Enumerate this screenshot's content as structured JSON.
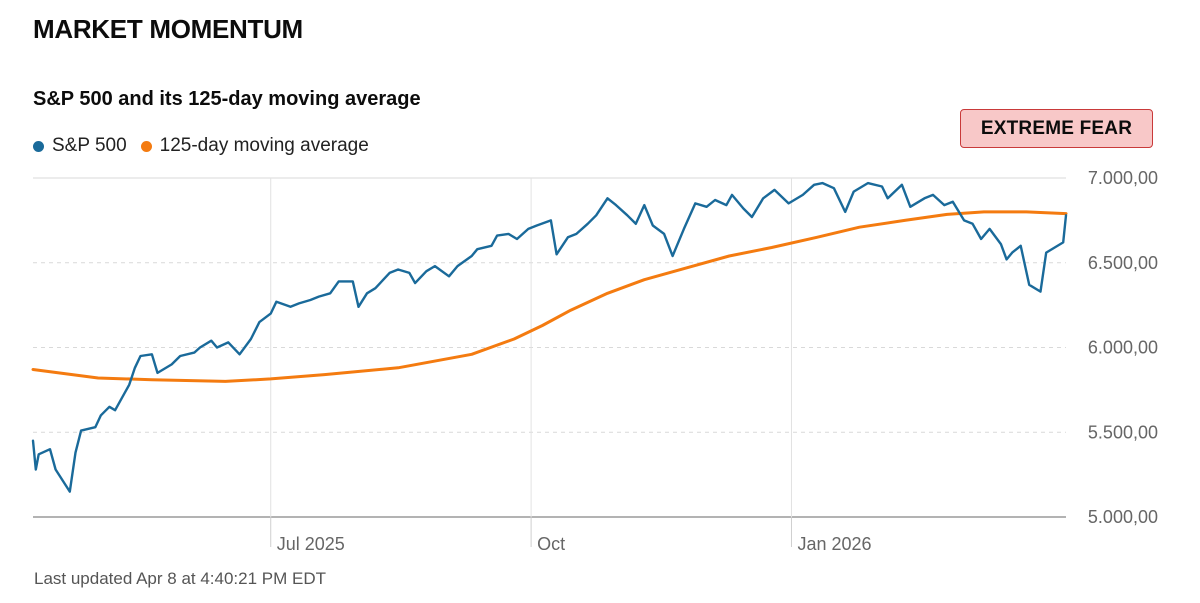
{
  "header": {
    "title": "MARKET MOMENTUM"
  },
  "badge": {
    "label": "EXTREME FEAR",
    "bg": "#f8c8c8",
    "border": "#c93a3a"
  },
  "footer": {
    "updated": "Last updated Apr 8 at 4:40:21 PM EDT"
  },
  "chart_data": {
    "type": "line",
    "title": "S&P 500 and its 125-day moving average",
    "xlabel": "",
    "ylabel": "",
    "ylim": [
      5000,
      7000
    ],
    "xlim": [
      "2025-04-08",
      "2026-04-08"
    ],
    "y_ticks": [
      {
        "value": 7000,
        "label": "7.000,00"
      },
      {
        "value": 6500,
        "label": "6.500,00"
      },
      {
        "value": 6000,
        "label": "6.000,00"
      },
      {
        "value": 5500,
        "label": "5.500,00"
      },
      {
        "value": 5000,
        "label": "5.000,00"
      }
    ],
    "x_ticks": [
      {
        "date": "2025-07-01",
        "label": "Jul 2025"
      },
      {
        "date": "2025-10-01",
        "label": "Oct"
      },
      {
        "date": "2026-01-01",
        "label": "Jan 2026"
      }
    ],
    "grid": true,
    "legend": "top-left",
    "series": [
      {
        "name": "S&P 500",
        "color": "#1a6a9a",
        "points": [
          [
            "2025-04-08",
            5450
          ],
          [
            "2025-04-09",
            5280
          ],
          [
            "2025-04-10",
            5370
          ],
          [
            "2025-04-14",
            5400
          ],
          [
            "2025-04-16",
            5280
          ],
          [
            "2025-04-21",
            5150
          ],
          [
            "2025-04-23",
            5380
          ],
          [
            "2025-04-25",
            5510
          ],
          [
            "2025-04-30",
            5530
          ],
          [
            "2025-05-02",
            5600
          ],
          [
            "2025-05-05",
            5650
          ],
          [
            "2025-05-07",
            5630
          ],
          [
            "2025-05-12",
            5780
          ],
          [
            "2025-05-14",
            5880
          ],
          [
            "2025-05-16",
            5950
          ],
          [
            "2025-05-20",
            5960
          ],
          [
            "2025-05-22",
            5850
          ],
          [
            "2025-05-27",
            5900
          ],
          [
            "2025-05-30",
            5950
          ],
          [
            "2025-06-04",
            5970
          ],
          [
            "2025-06-06",
            6000
          ],
          [
            "2025-06-10",
            6040
          ],
          [
            "2025-06-12",
            6000
          ],
          [
            "2025-06-16",
            6030
          ],
          [
            "2025-06-20",
            5960
          ],
          [
            "2025-06-24",
            6050
          ],
          [
            "2025-06-27",
            6150
          ],
          [
            "2025-07-01",
            6200
          ],
          [
            "2025-07-03",
            6270
          ],
          [
            "2025-07-08",
            6240
          ],
          [
            "2025-07-11",
            6260
          ],
          [
            "2025-07-15",
            6280
          ],
          [
            "2025-07-18",
            6300
          ],
          [
            "2025-07-22",
            6320
          ],
          [
            "2025-07-25",
            6390
          ],
          [
            "2025-07-30",
            6390
          ],
          [
            "2025-08-01",
            6240
          ],
          [
            "2025-08-04",
            6320
          ],
          [
            "2025-08-07",
            6350
          ],
          [
            "2025-08-12",
            6440
          ],
          [
            "2025-08-15",
            6460
          ],
          [
            "2025-08-19",
            6440
          ],
          [
            "2025-08-21",
            6380
          ],
          [
            "2025-08-25",
            6450
          ],
          [
            "2025-08-28",
            6480
          ],
          [
            "2025-09-02",
            6420
          ],
          [
            "2025-09-05",
            6480
          ],
          [
            "2025-09-10",
            6540
          ],
          [
            "2025-09-12",
            6580
          ],
          [
            "2025-09-17",
            6600
          ],
          [
            "2025-09-19",
            6660
          ],
          [
            "2025-09-23",
            6670
          ],
          [
            "2025-09-26",
            6640
          ],
          [
            "2025-09-30",
            6700
          ],
          [
            "2025-10-03",
            6720
          ],
          [
            "2025-10-08",
            6750
          ],
          [
            "2025-10-10",
            6550
          ],
          [
            "2025-10-14",
            6650
          ],
          [
            "2025-10-17",
            6670
          ],
          [
            "2025-10-21",
            6730
          ],
          [
            "2025-10-24",
            6780
          ],
          [
            "2025-10-28",
            6880
          ],
          [
            "2025-10-31",
            6840
          ],
          [
            "2025-11-04",
            6780
          ],
          [
            "2025-11-07",
            6730
          ],
          [
            "2025-11-10",
            6840
          ],
          [
            "2025-11-13",
            6720
          ],
          [
            "2025-11-17",
            6670
          ],
          [
            "2025-11-20",
            6540
          ],
          [
            "2025-11-24",
            6700
          ],
          [
            "2025-11-28",
            6850
          ],
          [
            "2025-12-02",
            6830
          ],
          [
            "2025-12-05",
            6870
          ],
          [
            "2025-12-09",
            6840
          ],
          [
            "2025-12-11",
            6900
          ],
          [
            "2025-12-15",
            6820
          ],
          [
            "2025-12-18",
            6770
          ],
          [
            "2025-12-22",
            6880
          ],
          [
            "2025-12-26",
            6930
          ],
          [
            "2025-12-31",
            6850
          ],
          [
            "2026-01-05",
            6900
          ],
          [
            "2026-01-09",
            6960
          ],
          [
            "2026-01-12",
            6970
          ],
          [
            "2026-01-16",
            6940
          ],
          [
            "2026-01-20",
            6800
          ],
          [
            "2026-01-23",
            6920
          ],
          [
            "2026-01-28",
            6970
          ],
          [
            "2026-02-02",
            6950
          ],
          [
            "2026-02-04",
            6880
          ],
          [
            "2026-02-09",
            6960
          ],
          [
            "2026-02-12",
            6830
          ],
          [
            "2026-02-17",
            6880
          ],
          [
            "2026-02-20",
            6900
          ],
          [
            "2026-02-24",
            6840
          ],
          [
            "2026-02-27",
            6860
          ],
          [
            "2026-03-03",
            6750
          ],
          [
            "2026-03-06",
            6730
          ],
          [
            "2026-03-09",
            6640
          ],
          [
            "2026-03-12",
            6700
          ],
          [
            "2026-03-16",
            6610
          ],
          [
            "2026-03-18",
            6520
          ],
          [
            "2026-03-20",
            6560
          ],
          [
            "2026-03-23",
            6600
          ],
          [
            "2026-03-26",
            6370
          ],
          [
            "2026-03-30",
            6330
          ],
          [
            "2026-04-01",
            6560
          ],
          [
            "2026-04-06",
            6610
          ],
          [
            "2026-04-07",
            6620
          ],
          [
            "2026-04-08",
            6780
          ]
        ]
      },
      {
        "name": "125-day moving average",
        "color": "#f47b10",
        "points": [
          [
            "2025-04-08",
            5870
          ],
          [
            "2025-05-01",
            5820
          ],
          [
            "2025-05-20",
            5810
          ],
          [
            "2025-06-15",
            5800
          ],
          [
            "2025-07-01",
            5815
          ],
          [
            "2025-07-20",
            5840
          ],
          [
            "2025-08-15",
            5880
          ],
          [
            "2025-09-10",
            5960
          ],
          [
            "2025-09-25",
            6050
          ],
          [
            "2025-10-05",
            6130
          ],
          [
            "2025-10-15",
            6220
          ],
          [
            "2025-10-28",
            6320
          ],
          [
            "2025-11-10",
            6400
          ],
          [
            "2025-11-25",
            6470
          ],
          [
            "2025-12-10",
            6540
          ],
          [
            "2025-12-25",
            6590
          ],
          [
            "2026-01-10",
            6650
          ],
          [
            "2026-01-25",
            6710
          ],
          [
            "2026-02-10",
            6750
          ],
          [
            "2026-02-25",
            6785
          ],
          [
            "2026-03-10",
            6800
          ],
          [
            "2026-03-25",
            6800
          ],
          [
            "2026-04-08",
            6790
          ]
        ]
      }
    ]
  }
}
